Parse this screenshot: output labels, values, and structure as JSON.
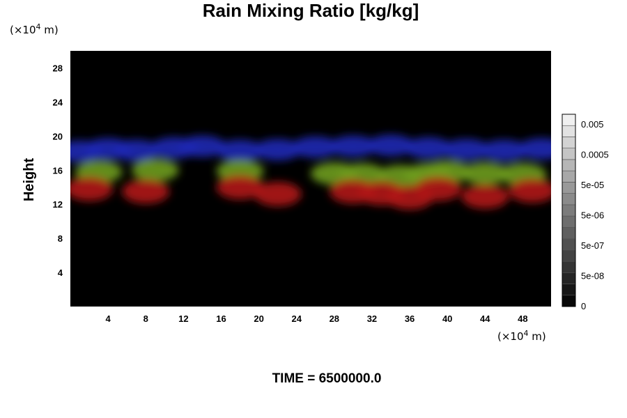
{
  "chart_data": {
    "type": "heatmap",
    "title": "Rain Mixing Ratio [kg/kg]",
    "ylabel": "Height",
    "x_unit_prefix": "(×10",
    "x_unit_exp": "4",
    "x_unit_suffix": " m)",
    "y_unit_prefix": "(×10",
    "y_unit_exp": "4",
    "y_unit_suffix": " m)",
    "xlim": [
      0,
      51
    ],
    "ylim": [
      0,
      30
    ],
    "xticks": [
      "4",
      "8",
      "12",
      "16",
      "20",
      "24",
      "28",
      "32",
      "36",
      "40",
      "44",
      "48"
    ],
    "yticks": [
      "4",
      "8",
      "12",
      "16",
      "20",
      "24",
      "28"
    ],
    "xtick_values": [
      4,
      8,
      12,
      16,
      20,
      24,
      28,
      32,
      36,
      40,
      44,
      48
    ],
    "ytick_values": [
      4,
      8,
      12,
      16,
      20,
      24,
      28
    ],
    "colorbar": {
      "labels": [
        "0.005",
        "0.0005",
        "5e-05",
        "5e-06",
        "5e-07",
        "5e-08",
        "0"
      ],
      "levels": 17
    },
    "layers": [
      {
        "color": "#1c28b4",
        "height_range": [
          16.5,
          19.8
        ],
        "blobs": [
          [
            1,
            18.2
          ],
          [
            4,
            18.5
          ],
          [
            7,
            18.3
          ],
          [
            11,
            18.6
          ],
          [
            14,
            18.8
          ],
          [
            18,
            18.3
          ],
          [
            22,
            18.4
          ],
          [
            26,
            18.7
          ],
          [
            30,
            18.8
          ],
          [
            34,
            18.9
          ],
          [
            38,
            18.6
          ],
          [
            42,
            18.4
          ],
          [
            46,
            18.3
          ],
          [
            50,
            18.5
          ]
        ]
      },
      {
        "color": "#6e9c1c",
        "height_range": [
          13.8,
          17.2
        ],
        "blobs": [
          [
            3,
            15.8
          ],
          [
            9,
            16.0
          ],
          [
            18,
            15.9
          ],
          [
            28,
            15.6
          ],
          [
            31,
            15.5
          ],
          [
            35,
            15.3
          ],
          [
            38,
            15.5
          ],
          [
            40,
            15.8
          ],
          [
            44,
            15.6
          ],
          [
            48,
            15.5
          ]
        ]
      },
      {
        "color": "#b01414",
        "height_range": [
          11.5,
          15.2
        ],
        "blobs": [
          [
            2,
            13.8
          ],
          [
            8,
            13.5
          ],
          [
            18,
            14.0
          ],
          [
            22,
            13.2
          ],
          [
            30,
            13.5
          ],
          [
            33,
            13.3
          ],
          [
            36,
            12.8
          ],
          [
            39,
            13.8
          ],
          [
            44,
            12.9
          ],
          [
            49,
            13.6
          ]
        ]
      }
    ]
  },
  "footer": {
    "time_label": "TIME = 6500000.0"
  }
}
